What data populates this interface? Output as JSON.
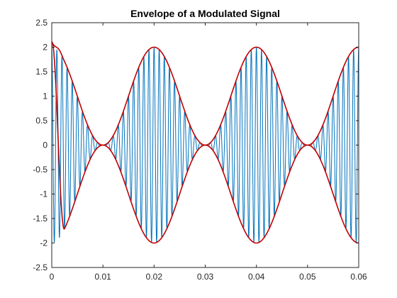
{
  "chart_data": {
    "type": "line",
    "title": "Envelope of a Modulated Signal",
    "xlabel": "",
    "ylabel": "",
    "xlim": [
      0,
      0.06
    ],
    "ylim": [
      -2.5,
      2.5
    ],
    "x_ticks": [
      0,
      0.01,
      0.02,
      0.03,
      0.04,
      0.05,
      0.06
    ],
    "x_tick_labels": [
      "0",
      "0.01",
      "0.02",
      "0.03",
      "0.04",
      "0.05",
      "0.06"
    ],
    "y_ticks": [
      -2.5,
      -2,
      -1.5,
      -1,
      -0.5,
      0,
      0.5,
      1,
      1.5,
      2,
      2.5
    ],
    "y_tick_labels": [
      "-2.5",
      "-2",
      "-1.5",
      "-1",
      "-0.5",
      "0",
      "0.5",
      "1",
      "1.5",
      "2",
      "2.5"
    ],
    "grid": false,
    "box": true,
    "series": [
      {
        "role": "modulated-signal",
        "color": "#0072BD",
        "description": "y = (1 + cos(2*pi*50*t)) * cos(2*pi*1000*t)",
        "carrier_freq_hz": 1000,
        "modulation_freq_hz": 50,
        "amplitude_peak": 2,
        "amplitude_min": 0
      },
      {
        "role": "upper-envelope",
        "color": "#C00000",
        "peak_points": [
          [
            0.0,
            2.0
          ],
          [
            0.02,
            2.0
          ],
          [
            0.04,
            2.0
          ],
          [
            0.06,
            2.0
          ]
        ],
        "trough_points": [
          [
            0.01,
            0.0
          ],
          [
            0.03,
            0.0
          ],
          [
            0.05,
            0.0
          ]
        ],
        "edge_start_value": 2.1
      },
      {
        "role": "lower-envelope",
        "color": "#C00000",
        "peak_points": [
          [
            0.0,
            -2.0
          ],
          [
            0.02,
            -2.0
          ],
          [
            0.04,
            -2.0
          ],
          [
            0.06,
            -2.0
          ]
        ],
        "trough_points": [
          [
            0.01,
            0.0
          ],
          [
            0.03,
            0.0
          ],
          [
            0.05,
            0.0
          ]
        ],
        "edge_start_value": -2.1
      }
    ]
  }
}
